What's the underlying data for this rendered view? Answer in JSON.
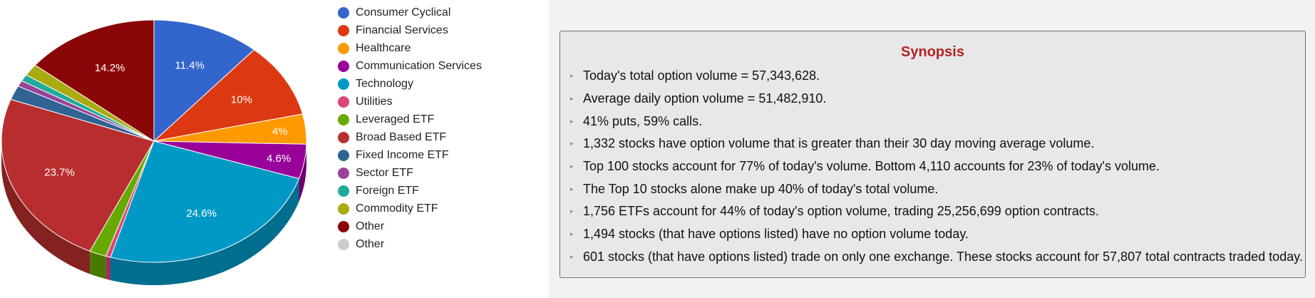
{
  "chart_data": {
    "type": "pie",
    "style": "3d",
    "slices": [
      {
        "label": "Consumer Cyclical",
        "value": 11.4,
        "color": "#3366cc",
        "data_label": "11.4%"
      },
      {
        "label": "Financial Services",
        "value": 10.0,
        "color": "#dc3912",
        "data_label": "10%"
      },
      {
        "label": "Healthcare",
        "value": 4.0,
        "color": "#ff9900",
        "data_label": "4%"
      },
      {
        "label": "Communication Services",
        "value": 4.6,
        "color": "#990099",
        "data_label": "4.6%"
      },
      {
        "label": "Technology",
        "value": 24.6,
        "color": "#0099c6",
        "data_label": "24.6%"
      },
      {
        "label": "Utilities",
        "value": 0.5,
        "color": "#dd4477",
        "data_label": ""
      },
      {
        "label": "Leveraged ETF",
        "value": 1.8,
        "color": "#66aa00",
        "data_label": ""
      },
      {
        "label": "Broad Based ETF",
        "value": 23.7,
        "color": "#b82e2e",
        "data_label": "23.7%"
      },
      {
        "label": "Fixed Income ETF",
        "value": 1.9,
        "color": "#316395",
        "data_label": ""
      },
      {
        "label": "Sector ETF",
        "value": 0.8,
        "color": "#994499",
        "data_label": ""
      },
      {
        "label": "Foreign ETF",
        "value": 0.9,
        "color": "#22aa99",
        "data_label": ""
      },
      {
        "label": "Commodity ETF",
        "value": 1.6,
        "color": "#aaaa11",
        "data_label": ""
      },
      {
        "label": "Other",
        "value": 14.2,
        "color": "#8b0707",
        "data_label": "14.2%"
      },
      {
        "label": "Other",
        "value": 0.0,
        "color": "#cccccc",
        "data_label": ""
      }
    ],
    "legend_position": "right"
  },
  "synopsis": {
    "title": "Synopsis",
    "items": [
      "Today's total option volume = 57,343,628.",
      "Average daily option volume = 51,482,910.",
      "41% puts, 59% calls.",
      "1,332 stocks have option volume that is greater than their 30 day moving average volume.",
      "Top 100 stocks account for 77% of today's volume. Bottom 4,110 accounts for 23% of today's volume.",
      "The Top 10 stocks alone make up 40% of today's total volume.",
      "1,756 ETFs account for 44% of today's option volume, trading 25,256,699 option contracts.",
      "1,494 stocks (that have options listed) have no option volume today.",
      "601 stocks (that have options listed) trade on only one exchange. These stocks account for 57,807 total contracts traded today."
    ]
  }
}
